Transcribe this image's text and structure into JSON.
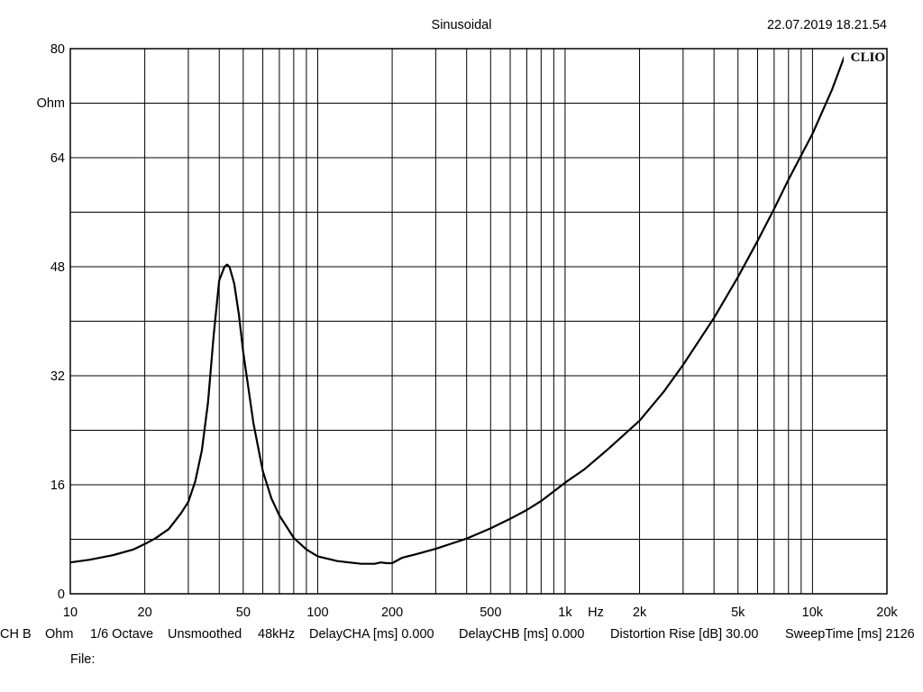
{
  "chart_data": {
    "type": "line",
    "title": "Sinusoidal",
    "timestamp": "22.07.2019 18.21.54",
    "watermark": "CLIO",
    "xlabel": "Hz",
    "ylabel": "Ohm",
    "x_scale": "log",
    "xlim": [
      10,
      20000
    ],
    "ylim": [
      0,
      80
    ],
    "grid": true,
    "x_ticks": [
      {
        "value": 10,
        "label": "10"
      },
      {
        "value": 20,
        "label": "20"
      },
      {
        "value": 50,
        "label": "50"
      },
      {
        "value": 100,
        "label": "100"
      },
      {
        "value": 200,
        "label": "200"
      },
      {
        "value": 500,
        "label": "500"
      },
      {
        "value": 1000,
        "label": "1k"
      },
      {
        "value": 2000,
        "label": "2k"
      },
      {
        "value": 5000,
        "label": "5k"
      },
      {
        "value": 10000,
        "label": "10k"
      },
      {
        "value": 20000,
        "label": "20k"
      }
    ],
    "y_ticks": [
      {
        "value": 0,
        "label": "0"
      },
      {
        "value": 16,
        "label": "16"
      },
      {
        "value": 32,
        "label": "32"
      },
      {
        "value": 48,
        "label": "48"
      },
      {
        "value": 64,
        "label": "64"
      },
      {
        "value": 80,
        "label": "80"
      }
    ],
    "series": [
      {
        "x": [
          10,
          12,
          15,
          18,
          20,
          22,
          25,
          28,
          30,
          32,
          34,
          36,
          38,
          40,
          42,
          43,
          44,
          46,
          48,
          50,
          55,
          60,
          65,
          70,
          80,
          90,
          100,
          120,
          150,
          170,
          180,
          190,
          200,
          220,
          250,
          300,
          350,
          400,
          500,
          600,
          700,
          800,
          1000,
          1200,
          1500,
          2000,
          2500,
          3000,
          4000,
          5000,
          6000,
          7000,
          8000,
          10000,
          12000,
          13500
        ],
        "y": [
          4.6,
          5.0,
          5.7,
          6.5,
          7.3,
          8.1,
          9.5,
          11.8,
          13.5,
          16.5,
          21.0,
          28.0,
          38.0,
          46.0,
          48.0,
          48.3,
          48.0,
          45.5,
          41.0,
          35.5,
          25.0,
          18.0,
          14.0,
          11.5,
          8.2,
          6.5,
          5.5,
          4.8,
          4.4,
          4.4,
          4.6,
          4.5,
          4.5,
          5.3,
          5.8,
          6.6,
          7.4,
          8.1,
          9.6,
          11.0,
          12.3,
          13.6,
          16.3,
          18.3,
          21.3,
          25.4,
          29.6,
          33.6,
          40.5,
          46.5,
          51.8,
          56.5,
          60.8,
          67.5,
          74.0,
          79.0
        ]
      }
    ]
  },
  "footer": {
    "items": [
      "CH B",
      "Ohm",
      "1/6 Octave",
      "Unsmoothed",
      "48kHz",
      "DelayCHA [ms] 0.000",
      "DelayCHB [ms] 0.000",
      "Distortion Rise [dB] 30.00",
      "SweepTime [ms] 2126"
    ],
    "file_label": "File:"
  },
  "colors": {
    "background": "#ffffff",
    "grid": "#000000",
    "trace": "#000000"
  }
}
